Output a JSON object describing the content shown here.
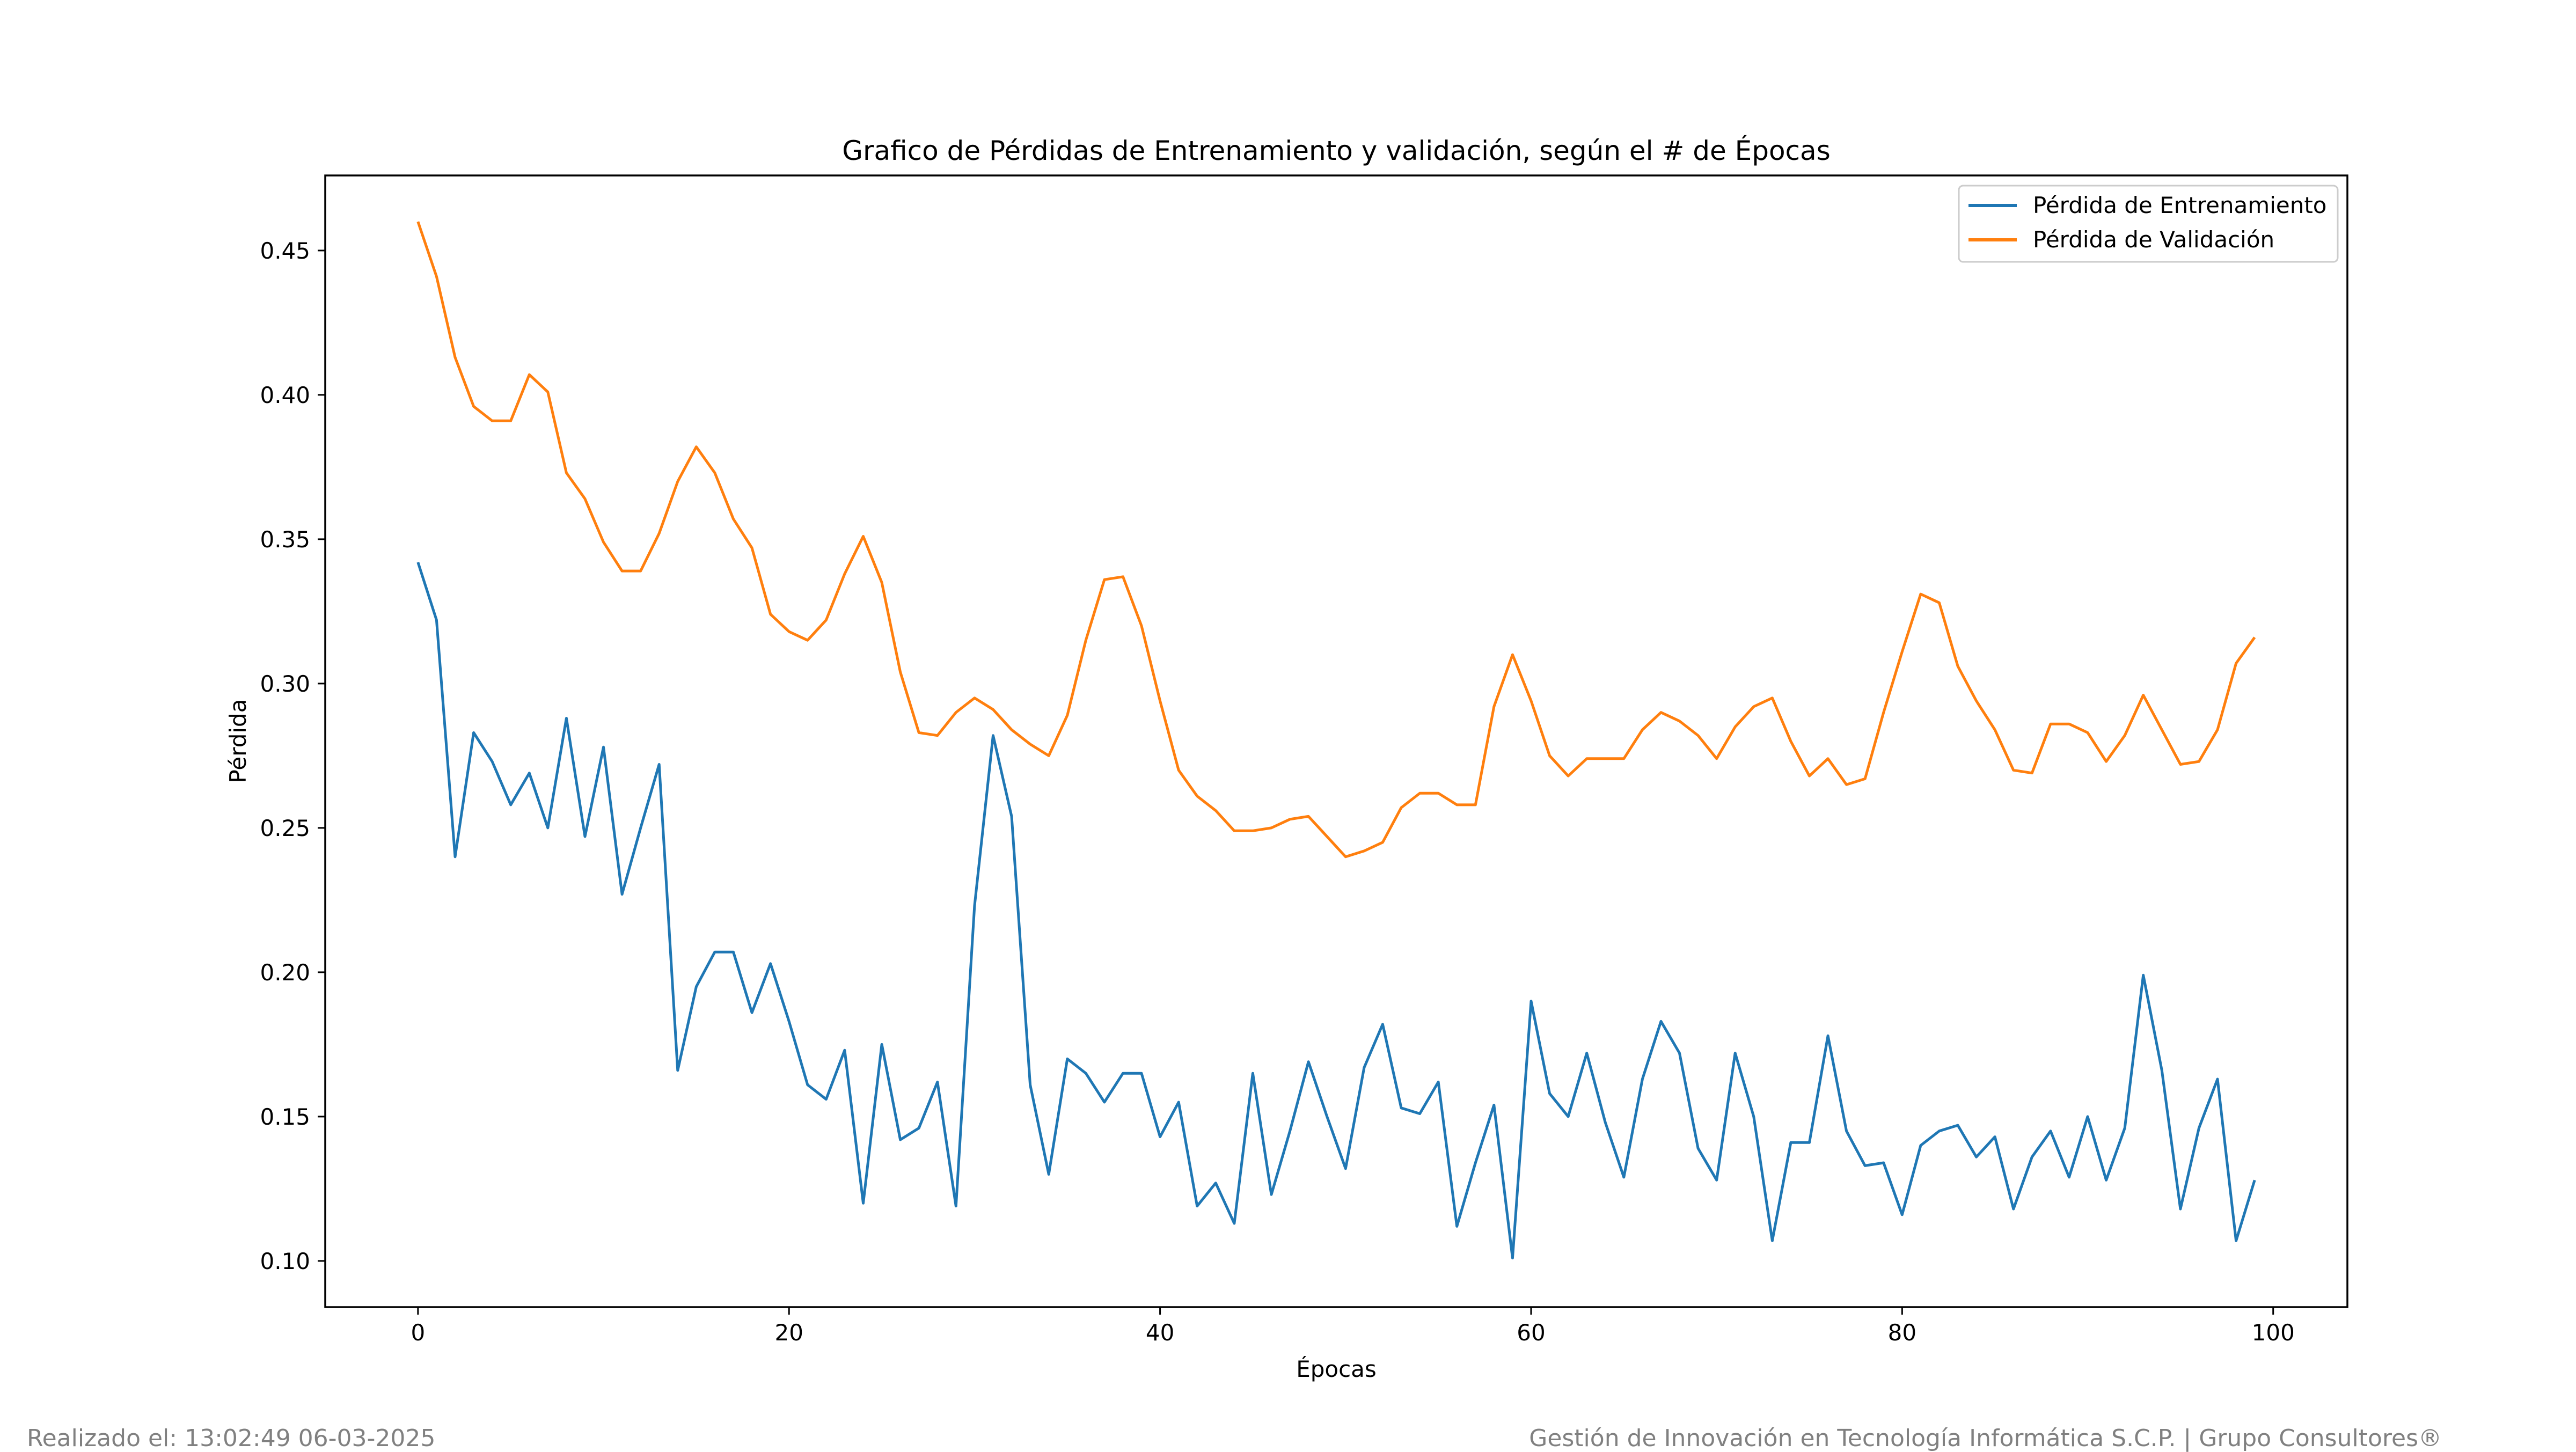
{
  "chart_data": {
    "type": "line",
    "title": "Grafico de Pérdidas de Entrenamiento y validación, según el # de Épocas",
    "xlabel": "Épocas",
    "ylabel": "Pérdida",
    "xlim": [
      -5,
      104
    ],
    "ylim": [
      0.084,
      0.476
    ],
    "xticks": [
      0,
      20,
      40,
      60,
      80,
      100
    ],
    "xtick_labels": [
      "0",
      "20",
      "40",
      "60",
      "80",
      "100"
    ],
    "yticks": [
      0.1,
      0.15,
      0.2,
      0.25,
      0.3,
      0.35,
      0.4,
      0.45
    ],
    "ytick_labels": [
      "0.10",
      "0.15",
      "0.20",
      "0.25",
      "0.30",
      "0.35",
      "0.40",
      "0.45"
    ],
    "grid": false,
    "legend_position": "top-right",
    "series": [
      {
        "name": "Pérdida de Entrenamiento",
        "color": "#1f77b4",
        "values": [
          0.342,
          0.322,
          0.24,
          0.283,
          0.273,
          0.258,
          0.269,
          0.25,
          0.288,
          0.247,
          0.278,
          0.227,
          0.25,
          0.272,
          0.166,
          0.195,
          0.207,
          0.207,
          0.186,
          0.203,
          0.183,
          0.161,
          0.156,
          0.173,
          0.12,
          0.175,
          0.142,
          0.146,
          0.162,
          0.119,
          0.223,
          0.282,
          0.254,
          0.161,
          0.13,
          0.17,
          0.165,
          0.155,
          0.165,
          0.165,
          0.143,
          0.155,
          0.119,
          0.127,
          0.113,
          0.165,
          0.123,
          0.145,
          0.169,
          0.15,
          0.132,
          0.167,
          0.182,
          0.153,
          0.151,
          0.162,
          0.112,
          0.134,
          0.154,
          0.101,
          0.19,
          0.158,
          0.15,
          0.172,
          0.148,
          0.129,
          0.163,
          0.183,
          0.172,
          0.139,
          0.128,
          0.172,
          0.15,
          0.107,
          0.141,
          0.141,
          0.178,
          0.145,
          0.133,
          0.134,
          0.116,
          0.14,
          0.145,
          0.147,
          0.136,
          0.143,
          0.118,
          0.136,
          0.145,
          0.129,
          0.15,
          0.128,
          0.146,
          0.199,
          0.166,
          0.118,
          0.146,
          0.163,
          0.107,
          0.128
        ]
      },
      {
        "name": "Pérdida de Validación",
        "color": "#ff7f0e",
        "values": [
          0.46,
          0.441,
          0.413,
          0.396,
          0.391,
          0.391,
          0.407,
          0.401,
          0.373,
          0.364,
          0.349,
          0.339,
          0.339,
          0.352,
          0.37,
          0.382,
          0.373,
          0.357,
          0.347,
          0.324,
          0.318,
          0.315,
          0.322,
          0.338,
          0.351,
          0.335,
          0.304,
          0.283,
          0.282,
          0.29,
          0.295,
          0.291,
          0.284,
          0.279,
          0.275,
          0.289,
          0.315,
          0.336,
          0.337,
          0.32,
          0.294,
          0.27,
          0.261,
          0.256,
          0.249,
          0.249,
          0.25,
          0.253,
          0.254,
          0.247,
          0.24,
          0.242,
          0.245,
          0.257,
          0.262,
          0.262,
          0.258,
          0.258,
          0.292,
          0.31,
          0.294,
          0.275,
          0.268,
          0.274,
          0.274,
          0.274,
          0.284,
          0.29,
          0.287,
          0.282,
          0.274,
          0.285,
          0.292,
          0.295,
          0.28,
          0.268,
          0.274,
          0.265,
          0.267,
          0.29,
          0.311,
          0.331,
          0.328,
          0.306,
          0.294,
          0.284,
          0.27,
          0.269,
          0.286,
          0.286,
          0.283,
          0.273,
          0.282,
          0.296,
          0.284,
          0.272,
          0.273,
          0.284,
          0.307,
          0.316
        ]
      }
    ]
  },
  "footer": {
    "left": "Realizado el: 13:02:49 06-03-2025",
    "right": "Gestión de Innovación en Tecnología Informática S.C.P. | Grupo Consultores®"
  }
}
